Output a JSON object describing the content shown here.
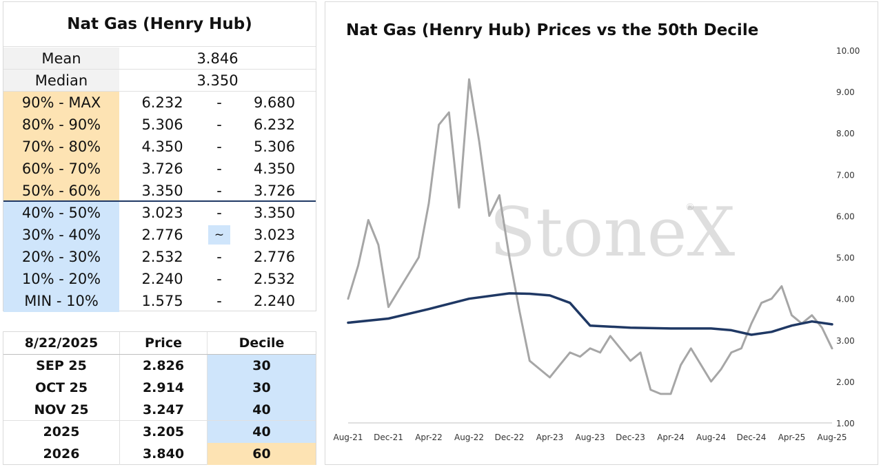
{
  "stats_table": {
    "title": "Nat Gas (Henry Hub)",
    "mean_label": "Mean",
    "mean_value": "3.846",
    "median_label": "Median",
    "median_value": "3.350",
    "deciles": [
      {
        "label": "90% - MAX",
        "low": "6.232",
        "sep": "-",
        "high": "9.680",
        "color": "#fde3b3"
      },
      {
        "label": "80% - 90%",
        "low": "5.306",
        "sep": "-",
        "high": "6.232",
        "color": "#fde3b3"
      },
      {
        "label": "70% - 80%",
        "low": "4.350",
        "sep": "-",
        "high": "5.306",
        "color": "#fde3b3"
      },
      {
        "label": "60% - 70%",
        "low": "3.726",
        "sep": "-",
        "high": "4.350",
        "color": "#fde3b3"
      },
      {
        "label": "50% - 60%",
        "low": "3.350",
        "sep": "-",
        "high": "3.726",
        "color": "#fde3b3"
      },
      {
        "label": "40% - 50%",
        "low": "3.023",
        "sep": "-",
        "high": "3.350",
        "color": "#cfe5fb"
      },
      {
        "label": "30% - 40%",
        "low": "2.776",
        "sep": "~",
        "high": "3.023",
        "color": "#cfe5fb"
      },
      {
        "label": "20% - 30%",
        "low": "2.532",
        "sep": "-",
        "high": "2.776",
        "color": "#cfe5fb"
      },
      {
        "label": "10% - 20%",
        "low": "2.240",
        "sep": "-",
        "high": "2.532",
        "color": "#cfe5fb"
      },
      {
        "label": "MIN - 10%",
        "low": "1.575",
        "sep": "-",
        "high": "2.240",
        "color": "#cfe5fb"
      }
    ]
  },
  "quotes_table": {
    "date_header": "8/22/2025",
    "price_header": "Price",
    "decile_header": "Decile",
    "rows": [
      {
        "contract": "SEP 25",
        "price": "2.826",
        "decile": "30",
        "color": "#cfe5fb"
      },
      {
        "contract": "OCT 25",
        "price": "2.914",
        "decile": "30",
        "color": "#cfe5fb"
      },
      {
        "contract": "NOV 25",
        "price": "3.247",
        "decile": "40",
        "color": "#cfe5fb"
      },
      {
        "contract": "2025",
        "price": "3.205",
        "decile": "40",
        "color": "#cfe5fb"
      },
      {
        "contract": "2026",
        "price": "3.840",
        "decile": "60",
        "color": "#fde3b3"
      }
    ]
  },
  "watermark": "StoneX",
  "chart_data": {
    "type": "line",
    "title": "Nat Gas (Henry Hub) Prices vs the 50th Decile",
    "x_tick_labels": [
      "Aug-21",
      "Dec-21",
      "Apr-22",
      "Aug-22",
      "Dec-22",
      "Apr-23",
      "Aug-23",
      "Dec-23",
      "Apr-24",
      "Aug-24",
      "Dec-24",
      "Apr-25",
      "Aug-25"
    ],
    "y_tick_labels": [
      "10.00",
      "9.00",
      "8.00",
      "7.00",
      "6.00",
      "5.00",
      "4.00",
      "3.00",
      "2.00",
      "1.00"
    ],
    "ylim": [
      1,
      10
    ],
    "y_axis_side": "right",
    "grid": false,
    "legend": "none",
    "series": [
      {
        "color": "#a6a6a6",
        "x": [
          "Aug-21",
          "Sep-21",
          "Oct-21",
          "Nov-21",
          "Dec-21",
          "Jan-22",
          "Feb-22",
          "Mar-22",
          "Apr-22",
          "May-22",
          "Jun-22",
          "Jul-22",
          "Aug-22",
          "Sep-22",
          "Oct-22",
          "Nov-22",
          "Dec-22",
          "Jan-23",
          "Feb-23",
          "Mar-23",
          "Apr-23",
          "May-23",
          "Jun-23",
          "Jul-23",
          "Aug-23",
          "Sep-23",
          "Oct-23",
          "Nov-23",
          "Dec-23",
          "Jan-24",
          "Feb-24",
          "Mar-24",
          "Apr-24",
          "May-24",
          "Jun-24",
          "Jul-24",
          "Aug-24",
          "Sep-24",
          "Oct-24",
          "Nov-24",
          "Dec-24",
          "Jan-25",
          "Feb-25",
          "Mar-25",
          "Apr-25",
          "May-25",
          "Jun-25",
          "Jul-25",
          "Aug-25"
        ],
        "values": [
          4.0,
          4.8,
          5.9,
          5.3,
          3.8,
          4.2,
          4.6,
          5.0,
          6.3,
          8.2,
          8.5,
          6.2,
          9.3,
          7.8,
          6.0,
          6.5,
          5.0,
          3.7,
          2.5,
          2.3,
          2.1,
          2.4,
          2.7,
          2.6,
          2.8,
          2.7,
          3.1,
          2.8,
          2.5,
          2.7,
          1.8,
          1.7,
          1.7,
          2.4,
          2.8,
          2.4,
          2.0,
          2.3,
          2.7,
          2.8,
          3.4,
          3.9,
          4.0,
          4.3,
          3.6,
          3.4,
          3.6,
          3.3,
          2.8
        ]
      },
      {
        "color": "#1f3864",
        "x": [
          "Aug-21",
          "Dec-21",
          "Apr-22",
          "Aug-22",
          "Dec-22",
          "Feb-23",
          "Apr-23",
          "Jun-23",
          "Aug-23",
          "Dec-23",
          "Apr-24",
          "Aug-24",
          "Oct-24",
          "Dec-24",
          "Feb-25",
          "Apr-25",
          "Jun-25",
          "Aug-25"
        ],
        "values": [
          3.42,
          3.52,
          3.75,
          4.0,
          4.13,
          4.12,
          4.08,
          3.9,
          3.35,
          3.3,
          3.28,
          3.28,
          3.24,
          3.13,
          3.2,
          3.35,
          3.45,
          3.38
        ]
      }
    ]
  }
}
